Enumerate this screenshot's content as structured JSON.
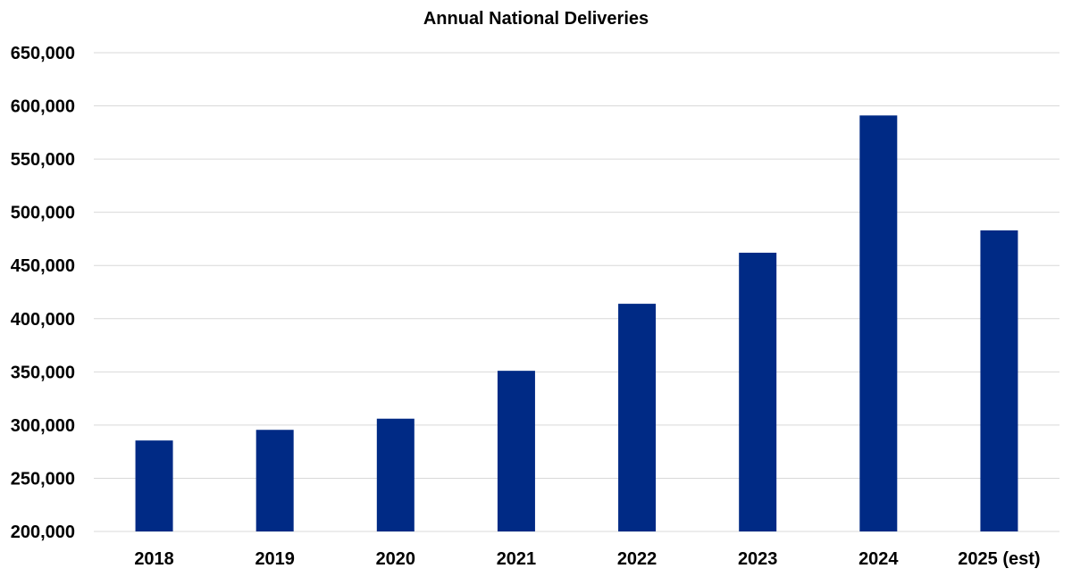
{
  "chart_data": {
    "type": "bar",
    "title": "Annual National Deliveries",
    "xlabel": "",
    "ylabel": "",
    "categories": [
      "2018",
      "2019",
      "2020",
      "2021",
      "2022",
      "2023",
      "2024",
      "2025 (est)"
    ],
    "values": [
      285500,
      295500,
      306000,
      351000,
      414000,
      462000,
      591000,
      483000
    ],
    "ylim": [
      200000,
      650000
    ],
    "yticks": [
      200000,
      250000,
      300000,
      350000,
      400000,
      450000,
      500000,
      550000,
      600000,
      650000
    ],
    "ytick_labels": [
      "200,000",
      "250,000",
      "300,000",
      "350,000",
      "400,000",
      "450,000",
      "500,000",
      "550,000",
      "600,000",
      "650,000"
    ],
    "grid": true,
    "legend": "none",
    "bar_color": "#002A85",
    "grid_color": "#D9D9D9"
  }
}
